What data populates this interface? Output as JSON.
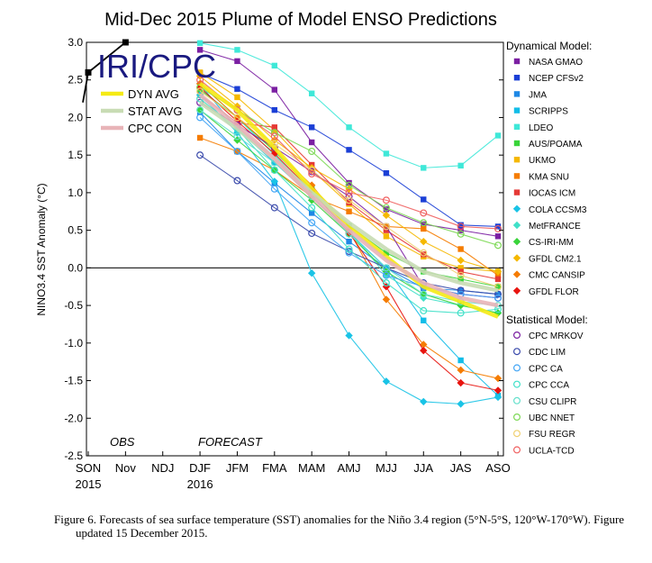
{
  "chart_data": {
    "type": "line",
    "title": "Mid-Dec 2015 Plume of Model ENSO Predictions",
    "ylabel": "NINO3.4 SST Anomaly (°C)",
    "xlabel": "",
    "categories": [
      "SON",
      "Nov",
      "NDJ",
      "DJF",
      "JFM",
      "FMA",
      "MAM",
      "AMJ",
      "MJJ",
      "JJA",
      "JAS",
      "ASO"
    ],
    "year_labels": [
      {
        "at": "SON",
        "text": "2015"
      },
      {
        "at": "DJF",
        "text": "2016"
      }
    ],
    "ylim": [
      -2.5,
      3.0
    ],
    "yticks": [
      "3.0",
      "2.5",
      "2.0",
      "1.5",
      "1.0",
      "0.5",
      "0.0",
      "-0.5",
      "-1.0",
      "-1.5",
      "-2.0",
      "-2.5"
    ],
    "zero_line": true,
    "grid": false,
    "logo_text": "IRI/CPC",
    "obs_label": "OBS",
    "forecast_label": "FORECAST",
    "observed": {
      "values": [
        2.6,
        3.0
      ],
      "start": 0,
      "color": "#000000"
    },
    "averages": [
      {
        "name": "DYN AVG",
        "color": "#f5ea14",
        "values": [
          2.45,
          2.1,
          1.6,
          1.05,
          0.55,
          0.15,
          -0.25,
          -0.45,
          -0.65
        ]
      },
      {
        "name": "STAT AVG",
        "color": "#c8dcb4",
        "values": [
          2.2,
          1.85,
          1.45,
          1.0,
          0.6,
          0.25,
          -0.05,
          -0.2,
          -0.3
        ]
      },
      {
        "name": "CPC CON",
        "color": "#e8b4b8",
        "values": [
          2.3,
          1.9,
          1.45,
          0.95,
          0.5,
          0.1,
          -0.2,
          -0.4,
          -0.5
        ]
      }
    ],
    "legend_dynamical_title": "Dynamical Model:",
    "legend_statistical_title": "Statistical Model:",
    "dynamical": [
      {
        "name": "NASA GMAO",
        "color": "#7b1fa2",
        "marker": "square",
        "values": [
          2.9,
          2.75,
          2.37,
          1.67,
          1.13,
          0.78,
          0.58,
          0.5,
          0.42
        ]
      },
      {
        "name": "NCEP CFSv2",
        "color": "#1b3fd6",
        "marker": "square",
        "values": [
          2.59,
          2.38,
          2.1,
          1.87,
          1.57,
          1.26,
          0.91,
          0.57,
          0.55
        ]
      },
      {
        "name": "JMA",
        "color": "#1e88e5",
        "marker": "square",
        "values": [
          2.07,
          1.55,
          1.13,
          0.73,
          0.35,
          0.0,
          -0.27,
          -0.3,
          -0.35
        ]
      },
      {
        "name": "SCRIPPS",
        "color": "#12bde8",
        "marker": "square",
        "values": [
          2.44,
          1.85,
          1.4,
          0.95,
          0.47,
          0.0,
          -0.7,
          -1.23,
          -1.7
        ]
      },
      {
        "name": "LDEO",
        "color": "#3fe8d8",
        "marker": "square",
        "values": [
          2.99,
          2.9,
          2.69,
          2.32,
          1.87,
          1.52,
          1.33,
          1.36,
          1.76
        ]
      },
      {
        "name": "AUS/POAMA",
        "color": "#39d43a",
        "marker": "square",
        "values": [
          2.37,
          2.0,
          1.55,
          1.05,
          0.56,
          0.2,
          -0.05,
          -0.15,
          -0.25
        ]
      },
      {
        "name": "UKMO",
        "color": "#f5b800",
        "marker": "square",
        "values": [
          2.6,
          2.27,
          1.83,
          1.3,
          0.85,
          0.42,
          0.15,
          0.0,
          -0.05
        ]
      },
      {
        "name": "KMA SNU",
        "color": "#f57c00",
        "marker": "square",
        "values": [
          1.73,
          1.55,
          1.3,
          0.95,
          0.75,
          0.55,
          0.52,
          0.25,
          -0.1
        ]
      },
      {
        "name": "IOCAS ICM",
        "color": "#e53935",
        "marker": "square",
        "values": [
          2.3,
          1.93,
          1.87,
          1.37,
          0.87,
          0.5,
          0.18,
          -0.05,
          -0.15
        ]
      },
      {
        "name": "COLA CCSM3",
        "color": "#19c3e6",
        "marker": "diamond",
        "values": [
          2.3,
          1.8,
          1.15,
          -0.07,
          -0.9,
          -1.51,
          -1.78,
          -1.81,
          -1.72
        ]
      },
      {
        "name": "MetFRANCE",
        "color": "#3fe0c8",
        "marker": "diamond",
        "values": [
          2.45,
          2.0,
          1.5,
          1.0,
          0.5,
          -0.1,
          -0.4,
          -0.5,
          -0.6
        ]
      },
      {
        "name": "CS-IRI-MM",
        "color": "#39d43a",
        "marker": "diamond",
        "values": [
          2.1,
          1.7,
          1.3,
          0.9,
          0.45,
          -0.05,
          -0.35,
          -0.5,
          -0.6
        ]
      },
      {
        "name": "GFDL CM2.1",
        "color": "#f5b800",
        "marker": "diamond",
        "values": [
          2.55,
          2.15,
          1.7,
          1.33,
          1.05,
          0.7,
          0.35,
          0.1,
          -0.05
        ]
      },
      {
        "name": "CMC CANSIP",
        "color": "#f57c00",
        "marker": "diamond",
        "values": [
          2.45,
          2.0,
          1.57,
          1.1,
          0.5,
          -0.42,
          -1.02,
          -1.36,
          -1.47
        ]
      },
      {
        "name": "GFDL FLOR",
        "color": "#e8140f",
        "marker": "diamond",
        "values": [
          2.4,
          1.95,
          1.52,
          1.02,
          0.47,
          -0.25,
          -1.1,
          -1.53,
          -1.63
        ]
      }
    ],
    "statistical": [
      {
        "name": "CPC MRKOV",
        "color": "#7b1fa2",
        "marker": "circle",
        "values": [
          2.2,
          1.9,
          1.6,
          1.28,
          0.95,
          0.55,
          -0.25,
          -0.35,
          -0.4
        ]
      },
      {
        "name": "CDC LIM",
        "color": "#3949ab",
        "marker": "circle",
        "values": [
          1.5,
          1.16,
          0.8,
          0.46,
          0.22,
          0.0,
          -0.2,
          -0.3,
          -0.35
        ]
      },
      {
        "name": "CPC CA",
        "color": "#42a5f5",
        "marker": "circle",
        "values": [
          2.0,
          1.55,
          1.05,
          0.6,
          0.2,
          -0.1,
          -0.25,
          -0.35,
          -0.4
        ]
      },
      {
        "name": "CPC CCA",
        "color": "#3fe0c8",
        "marker": "circle",
        "values": [
          2.25,
          1.85,
          1.3,
          0.8,
          0.25,
          -0.2,
          -0.57,
          -0.6,
          -0.55
        ]
      },
      {
        "name": "CSU CLIPR",
        "color": "#66e0cc",
        "marker": "circle",
        "values": [
          2.1,
          1.75,
          1.4,
          0.95,
          0.45,
          0.0,
          -0.35,
          -0.45,
          -0.5
        ]
      },
      {
        "name": "UBC NNET",
        "color": "#7ed957",
        "marker": "circle",
        "values": [
          2.4,
          2.1,
          1.8,
          1.55,
          1.1,
          0.8,
          0.6,
          0.45,
          0.3
        ]
      },
      {
        "name": "FSU REGR",
        "color": "#f0d070",
        "marker": "circle",
        "values": [
          2.35,
          2.0,
          1.65,
          1.3,
          0.9,
          0.55,
          0.2,
          -0.1,
          -0.25
        ]
      },
      {
        "name": "UCLA-TCD",
        "color": "#f06060",
        "marker": "circle",
        "values": [
          2.5,
          2.1,
          1.75,
          1.25,
          1.0,
          0.9,
          0.73,
          0.55,
          0.52
        ]
      }
    ]
  },
  "caption": "Figure 6. Forecasts of sea surface temperature (SST) anomalies for the Niño 3.4 region (5°N-5°S, 120°W-170°W). Figure updated 15 December 2015."
}
